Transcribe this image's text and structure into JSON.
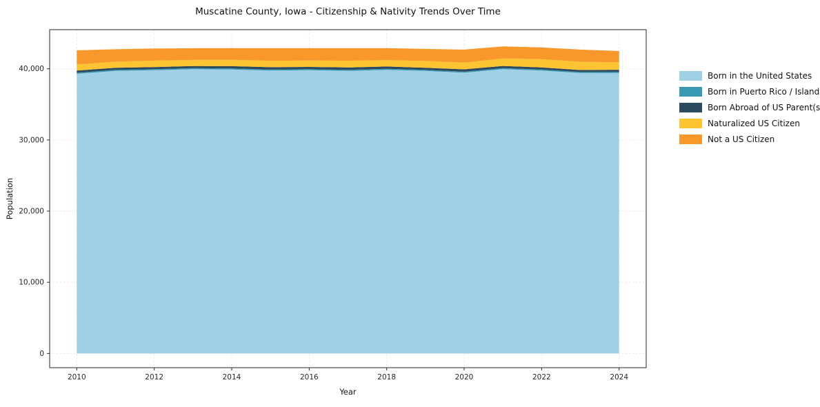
{
  "page": {
    "background": "#ffffff"
  },
  "chart_data": {
    "type": "area",
    "stacked": true,
    "title": "Muscatine County, Iowa - Citizenship & Nativity Trends Over Time",
    "xlabel": "Year",
    "ylabel": "Population",
    "x": [
      2010,
      2011,
      2012,
      2013,
      2014,
      2015,
      2016,
      2017,
      2018,
      2019,
      2020,
      2021,
      2022,
      2023,
      2024
    ],
    "xticks": [
      2010,
      2012,
      2014,
      2016,
      2018,
      2020,
      2022,
      2024
    ],
    "yticks": [
      0,
      10000,
      20000,
      30000,
      40000
    ],
    "xlim": [
      2009.3,
      2024.7
    ],
    "ylim": [
      -2000,
      45500
    ],
    "grid": true,
    "legend_position": "right",
    "series": [
      {
        "name": "Born in the United States",
        "color": "#9fd0e6",
        "values": [
          39300,
          39700,
          39800,
          39950,
          39900,
          39750,
          39800,
          39700,
          39850,
          39700,
          39450,
          39950,
          39750,
          39400,
          39400
        ]
      },
      {
        "name": "Born in Puerto Rico / Islands",
        "color": "#3a98b2",
        "values": [
          150,
          150,
          150,
          140,
          150,
          150,
          150,
          160,
          150,
          150,
          150,
          150,
          150,
          150,
          170
        ]
      },
      {
        "name": "Born Abroad of US Parent(s)",
        "color": "#2b4a5e",
        "values": [
          300,
          300,
          300,
          300,
          320,
          330,
          320,
          330,
          320,
          300,
          330,
          300,
          300,
          280,
          300
        ]
      },
      {
        "name": "Naturalized US Citizen",
        "color": "#fcc332",
        "values": [
          850,
          850,
          900,
          850,
          880,
          900,
          900,
          950,
          900,
          950,
          950,
          1050,
          1150,
          1150,
          1050
        ]
      },
      {
        "name": "Not a US Citizen",
        "color": "#f8982b",
        "values": [
          2000,
          1750,
          1700,
          1650,
          1650,
          1770,
          1730,
          1760,
          1680,
          1700,
          1820,
          1700,
          1650,
          1720,
          1580
        ]
      }
    ]
  }
}
